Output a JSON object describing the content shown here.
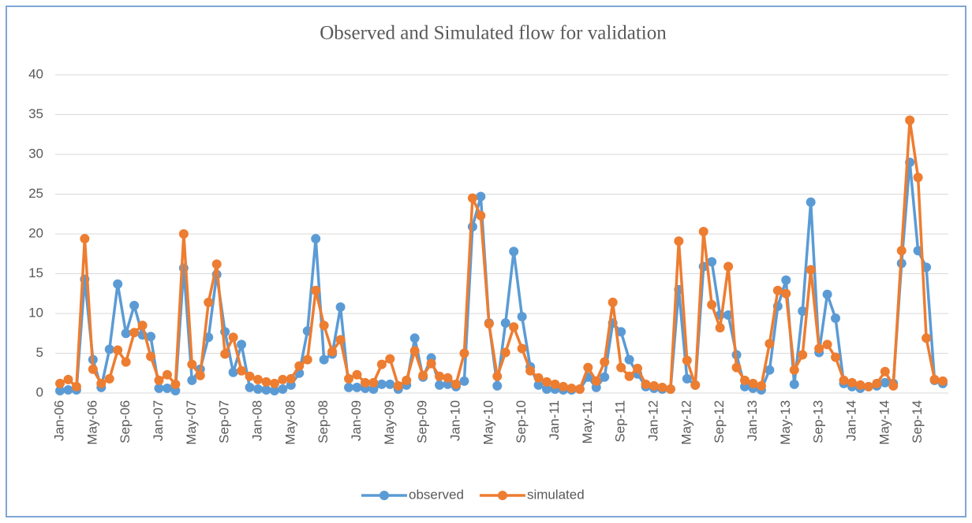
{
  "chart_data": {
    "type": "line",
    "title": "Observed and Simulated flow for validation",
    "categories": [
      "Jan-06",
      null,
      null,
      null,
      "May-06",
      null,
      null,
      null,
      "Sep-06",
      null,
      null,
      null,
      "Jan-07",
      null,
      null,
      null,
      "May-07",
      null,
      null,
      null,
      "Sep-07",
      null,
      null,
      null,
      "Jan-08",
      null,
      null,
      null,
      "May-08",
      null,
      null,
      null,
      "Sep-08",
      null,
      null,
      null,
      "Jan-09",
      null,
      null,
      null,
      "May-09",
      null,
      null,
      null,
      "Sep-09",
      null,
      null,
      null,
      "Jan-10",
      null,
      null,
      null,
      "May-10",
      null,
      null,
      null,
      "Sep-10",
      null,
      null,
      null,
      "Jan-11",
      null,
      null,
      null,
      "May-11",
      null,
      null,
      null,
      "Sep-11",
      null,
      null,
      null,
      "Jan-12",
      null,
      null,
      null,
      "May-12",
      null,
      null,
      null,
      "Sep-12",
      null,
      null,
      null,
      "Jan-13",
      null,
      null,
      null,
      "May-13",
      null,
      null,
      null,
      "Sep-13",
      null,
      null,
      null,
      "Jan-14",
      null,
      null,
      null,
      "May-14",
      null,
      null,
      null,
      "Sep-14",
      null,
      null,
      null
    ],
    "series": [
      {
        "name": "observed",
        "color": "#5b9bd5",
        "values": [
          0.3,
          0.4,
          0.4,
          14.3,
          4.2,
          0.7,
          5.5,
          13.7,
          7.5,
          11.0,
          7.3,
          7.1,
          0.6,
          0.6,
          0.3,
          15.7,
          1.6,
          3.0,
          7.0,
          14.9,
          7.7,
          2.6,
          6.1,
          0.7,
          0.5,
          0.4,
          0.3,
          0.5,
          1.0,
          2.5,
          7.8,
          19.4,
          4.2,
          4.9,
          10.8,
          0.7,
          0.7,
          0.6,
          0.5,
          1.1,
          1.1,
          0.5,
          1.0,
          6.9,
          2.0,
          4.4,
          1.0,
          1.1,
          0.8,
          1.5,
          20.9,
          24.7,
          8.8,
          0.9,
          8.8,
          17.8,
          9.6,
          3.3,
          1.0,
          0.5,
          0.5,
          0.4,
          0.4,
          0.5,
          2.0,
          0.7,
          2.0,
          8.8,
          7.7,
          4.2,
          2.4,
          0.8,
          0.6,
          0.5,
          0.5,
          13.0,
          1.8,
          1.0,
          15.9,
          16.5,
          9.8,
          9.8,
          4.8,
          0.8,
          0.6,
          0.4,
          2.9,
          10.9,
          14.2,
          1.1,
          10.3,
          24.0,
          5.1,
          12.4,
          9.4,
          1.2,
          0.8,
          0.6,
          0.8,
          0.9,
          1.3,
          1.2,
          16.3,
          29.0,
          17.9,
          15.8,
          1.6,
          1.2
        ]
      },
      {
        "name": "simulated",
        "color": "#ed7d31",
        "values": [
          1.2,
          1.7,
          0.8,
          19.4,
          3.0,
          1.2,
          1.8,
          5.4,
          3.9,
          7.6,
          8.5,
          4.6,
          1.6,
          2.3,
          1.1,
          20.0,
          3.6,
          2.2,
          11.4,
          16.2,
          4.9,
          7.0,
          2.8,
          2.1,
          1.7,
          1.4,
          1.2,
          1.7,
          1.8,
          3.4,
          4.2,
          12.9,
          8.5,
          5.2,
          6.7,
          1.8,
          2.3,
          1.3,
          1.3,
          3.6,
          4.3,
          0.9,
          1.6,
          5.3,
          2.2,
          3.7,
          2.1,
          1.9,
          1.1,
          5.0,
          24.5,
          22.3,
          8.7,
          2.1,
          5.1,
          8.3,
          5.6,
          2.8,
          1.9,
          1.4,
          1.1,
          0.8,
          0.6,
          0.5,
          3.2,
          1.5,
          3.9,
          11.4,
          3.2,
          2.1,
          3.1,
          1.1,
          0.9,
          0.7,
          0.5,
          19.1,
          4.1,
          1.0,
          20.3,
          11.1,
          8.2,
          15.9,
          3.2,
          1.6,
          1.2,
          0.9,
          6.2,
          12.9,
          12.5,
          2.9,
          4.8,
          15.5,
          5.6,
          6.1,
          4.5,
          1.6,
          1.3,
          1.0,
          0.8,
          1.2,
          2.7,
          0.9,
          17.9,
          34.3,
          27.1,
          6.9,
          1.7,
          1.5
        ]
      }
    ],
    "ylim": [
      0,
      40
    ],
    "yticks": [
      0,
      5,
      10,
      15,
      20,
      25,
      30,
      35,
      40
    ],
    "grid": true,
    "legend": "bottom"
  }
}
